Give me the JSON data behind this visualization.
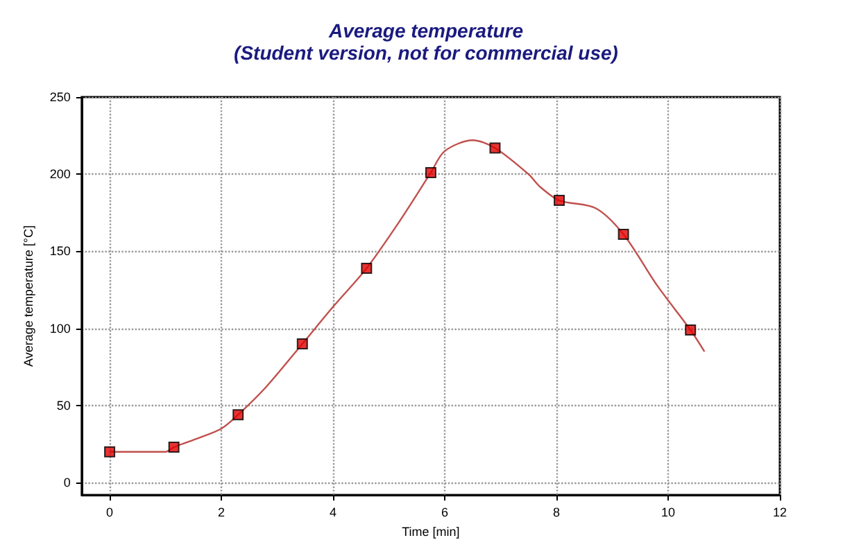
{
  "chart_data": {
    "type": "line",
    "title": "Average temperature",
    "subtitle": "(Student version, not for commercial use)",
    "xlabel": "Time [min]",
    "ylabel": "Average temperature [°C]",
    "xlim": [
      -0.5,
      12
    ],
    "xticks": [
      0,
      2,
      4,
      6,
      8,
      10,
      12
    ],
    "ylim": [
      -8,
      250
    ],
    "yticks": [
      0,
      50,
      100,
      150,
      200,
      250
    ],
    "grid": true,
    "line_style": "solid",
    "series": [
      {
        "color": "#c0504d",
        "marker": "none",
        "x": [
          0,
          0.5,
          1.0,
          1.15,
          1.6,
          2.0,
          2.3,
          2.8,
          3.45,
          4.0,
          4.6,
          5.2,
          5.75,
          6.0,
          6.5,
          6.9,
          7.5,
          7.7,
          8.05,
          8.7,
          9.2,
          9.8,
          10.4,
          10.65
        ],
        "values": [
          20,
          20,
          20,
          23,
          29,
          35,
          44,
          62,
          90,
          114,
          139,
          170,
          201,
          215,
          222,
          217,
          200,
          192,
          183,
          178,
          161,
          128,
          99,
          85
        ]
      },
      {
        "type": "scatter",
        "color": "#e00000",
        "marker": "square",
        "x": [
          0,
          1.15,
          2.3,
          3.45,
          4.6,
          5.75,
          6.9,
          8.05,
          9.2,
          10.4
        ],
        "values": [
          20,
          23,
          44,
          90,
          139,
          201,
          217,
          183,
          161,
          99
        ]
      }
    ]
  }
}
